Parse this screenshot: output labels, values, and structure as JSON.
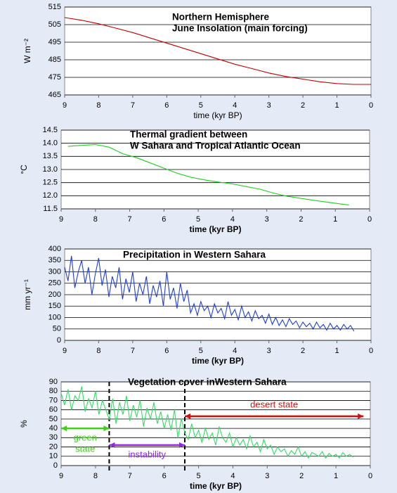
{
  "chart_data": [
    {
      "type": "line",
      "title": "Northern Hemisphere",
      "subtitle": "June Insolation (main forcing)",
      "xlabel": "time (kyr BP)",
      "ylabel": "W m⁻²",
      "x": [
        9,
        8.5,
        8,
        7.5,
        7,
        6.5,
        6,
        5.5,
        5,
        4.5,
        4,
        3.5,
        3,
        2.5,
        2,
        1.5,
        1,
        0.5,
        0
      ],
      "series": [
        {
          "color": "#c00000",
          "values": [
            509,
            507.5,
            505.5,
            503,
            500.5,
            497.5,
            494.5,
            491.5,
            488.5,
            485.5,
            482.5,
            480,
            477.5,
            475.5,
            474,
            472.5,
            471.5,
            471,
            471
          ]
        }
      ],
      "xlim": [
        9,
        0
      ],
      "xticks": [
        9,
        8,
        7,
        6,
        5,
        4,
        3,
        2,
        1,
        0
      ],
      "ylim": [
        465,
        515
      ],
      "yticks": [
        465,
        475,
        485,
        495,
        505,
        515
      ],
      "grid": true
    },
    {
      "type": "line",
      "title": "Thermal gradient between",
      "subtitle": "W Sahara and Tropical Atlantic Ocean",
      "xlabel": "time (kyr BP)",
      "ylabel": "°C",
      "x": [
        8.8,
        8.4,
        8.0,
        7.6,
        7.2,
        6.8,
        6.4,
        6.0,
        5.6,
        5.2,
        4.8,
        4.4,
        4.0,
        3.6,
        3.2,
        2.8,
        2.4,
        2.0,
        1.6,
        1.2,
        0.8,
        0.6
      ],
      "series": [
        {
          "color": "#22cc22",
          "values": [
            13.88,
            13.92,
            13.95,
            13.85,
            13.6,
            13.45,
            13.25,
            13.05,
            12.85,
            12.7,
            12.6,
            12.52,
            12.45,
            12.35,
            12.25,
            12.1,
            11.98,
            11.9,
            11.82,
            11.75,
            11.68,
            11.65
          ]
        }
      ],
      "xlim": [
        9,
        0
      ],
      "xticks": [
        9,
        8,
        7,
        6,
        5,
        4,
        3,
        2,
        1,
        0
      ],
      "ylim": [
        11.5,
        14.5
      ],
      "yticks": [
        11.5,
        {
          "value": 12,
          "label": "12.0"
        },
        12.5,
        {
          "value": 13,
          "label": "13.0"
        },
        13.5,
        {
          "value": 14,
          "label": "14.0"
        },
        14.5
      ],
      "grid": true
    },
    {
      "type": "line",
      "title": "Precipitation in Western Sahara",
      "xlabel": "time (kyr BP)",
      "ylabel": "mm yr⁻¹",
      "x": [
        9,
        8.9,
        8.8,
        8.7,
        8.6,
        8.5,
        8.4,
        8.3,
        8.2,
        8.1,
        8,
        7.9,
        7.8,
        7.7,
        7.6,
        7.5,
        7.4,
        7.3,
        7.2,
        7.1,
        7,
        6.9,
        6.8,
        6.7,
        6.6,
        6.5,
        6.4,
        6.3,
        6.2,
        6.1,
        6,
        5.9,
        5.8,
        5.7,
        5.6,
        5.5,
        5.4,
        5.3,
        5.2,
        5.1,
        5,
        4.9,
        4.8,
        4.7,
        4.6,
        4.5,
        4.4,
        4.3,
        4.2,
        4.1,
        4,
        3.9,
        3.8,
        3.7,
        3.6,
        3.5,
        3.4,
        3.3,
        3.2,
        3.1,
        3,
        2.9,
        2.8,
        2.7,
        2.6,
        2.5,
        2.4,
        2.3,
        2.2,
        2.1,
        2,
        1.9,
        1.8,
        1.7,
        1.6,
        1.5,
        1.4,
        1.3,
        1.2,
        1.1,
        1,
        0.9,
        0.8,
        0.7,
        0.6,
        0.5
      ],
      "series": [
        {
          "color": "#1f3fd0",
          "values": [
            320,
            260,
            370,
            230,
            300,
            350,
            250,
            320,
            200,
            290,
            360,
            240,
            310,
            190,
            280,
            230,
            320,
            180,
            270,
            210,
            300,
            170,
            250,
            200,
            280,
            160,
            240,
            190,
            260,
            150,
            300,
            180,
            230,
            140,
            250,
            170,
            220,
            120,
            160,
            110,
            170,
            130,
            150,
            100,
            160,
            120,
            140,
            95,
            170,
            110,
            135,
            90,
            150,
            100,
            125,
            85,
            130,
            95,
            110,
            75,
            115,
            70,
            100,
            65,
            90,
            60,
            95,
            70,
            85,
            55,
            80,
            60,
            75,
            50,
            80,
            55,
            70,
            45,
            75,
            50,
            65,
            45,
            70,
            50,
            65,
            40
          ]
        }
      ],
      "xlim": [
        9,
        0
      ],
      "xticks": [
        9,
        8,
        7,
        6,
        5,
        4,
        3,
        2,
        1,
        0
      ],
      "ylim": [
        0,
        400
      ],
      "yticks": [
        0,
        50,
        100,
        150,
        200,
        250,
        300,
        350,
        400
      ],
      "grid": true
    },
    {
      "type": "line",
      "title": "Vegetation cover inWestern Sahara",
      "xlabel": "time (kyr BP)",
      "ylabel": "%",
      "x": [
        9,
        8.9,
        8.8,
        8.7,
        8.6,
        8.5,
        8.4,
        8.3,
        8.2,
        8.1,
        8,
        7.9,
        7.8,
        7.7,
        7.6,
        7.5,
        7.4,
        7.3,
        7.2,
        7.1,
        7,
        6.9,
        6.8,
        6.7,
        6.6,
        6.5,
        6.4,
        6.3,
        6.2,
        6.1,
        6,
        5.9,
        5.8,
        5.7,
        5.6,
        5.5,
        5.4,
        5.3,
        5.2,
        5.1,
        5,
        4.9,
        4.8,
        4.7,
        4.6,
        4.5,
        4.4,
        4.3,
        4.2,
        4.1,
        4,
        3.9,
        3.8,
        3.7,
        3.6,
        3.5,
        3.4,
        3.3,
        3.2,
        3.1,
        3,
        2.9,
        2.8,
        2.7,
        2.6,
        2.5,
        2.4,
        2.3,
        2.2,
        2.1,
        2,
        1.9,
        1.8,
        1.7,
        1.6,
        1.5,
        1.4,
        1.3,
        1.2,
        1.1,
        1,
        0.9,
        0.8,
        0.7,
        0.6,
        0.5
      ],
      "series": [
        {
          "color": "#33dd66",
          "values": [
            78,
            65,
            82,
            60,
            75,
            70,
            85,
            58,
            72,
            62,
            80,
            55,
            70,
            60,
            50,
            72,
            45,
            68,
            55,
            75,
            48,
            65,
            52,
            70,
            42,
            62,
            50,
            68,
            45,
            58,
            40,
            55,
            38,
            60,
            30,
            50,
            35,
            28,
            45,
            30,
            38,
            25,
            40,
            28,
            35,
            22,
            42,
            30,
            25,
            35,
            20,
            30,
            22,
            28,
            18,
            32,
            20,
            25,
            15,
            28,
            18,
            22,
            12,
            20,
            15,
            18,
            10,
            16,
            12,
            20,
            10,
            15,
            8,
            14,
            12,
            10,
            15,
            8,
            13,
            10,
            12,
            8,
            14,
            10,
            12,
            9
          ]
        }
      ],
      "xlim": [
        9,
        0
      ],
      "xticks": [
        9,
        8,
        7,
        6,
        5,
        4,
        3,
        2,
        1,
        0
      ],
      "ylim": [
        0,
        90
      ],
      "yticks": [
        0,
        10,
        20,
        30,
        40,
        50,
        60,
        70,
        80,
        90
      ],
      "grid": true,
      "dividers": [
        7.6,
        5.4
      ],
      "arrows": [
        {
          "lines": [
            "desert state"
          ],
          "color": "#d01010",
          "x1": 5.4,
          "x2": 0.2,
          "y": 53
        },
        {
          "lines": [
            "green",
            "state"
          ],
          "color": "#44cc22",
          "x1": 9,
          "x2": 7.6,
          "y": 40
        },
        {
          "lines": [
            "instability"
          ],
          "color": "#8a2be2",
          "x1": 7.6,
          "x2": 5.4,
          "y": 22
        }
      ]
    }
  ]
}
